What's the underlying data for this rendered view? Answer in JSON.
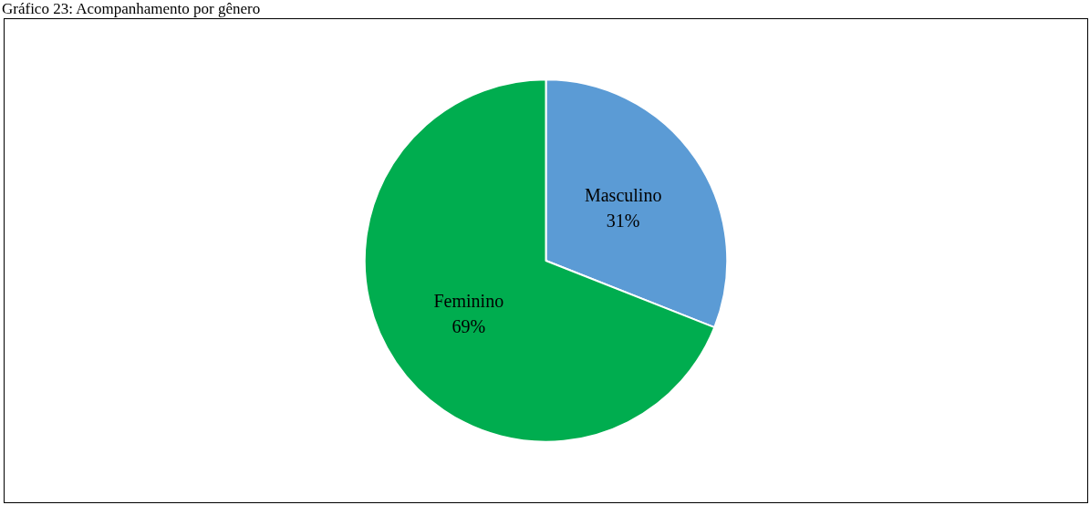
{
  "chart_data": {
    "type": "pie",
    "title": "Gráfico 23: Acompanhamento por gênero",
    "categories": [
      "Masculino",
      "Feminino"
    ],
    "values": [
      31,
      69
    ],
    "colors": [
      "#5b9bd5",
      "#00ad4f"
    ],
    "value_labels": [
      "31%",
      "69%"
    ],
    "legend": false
  }
}
